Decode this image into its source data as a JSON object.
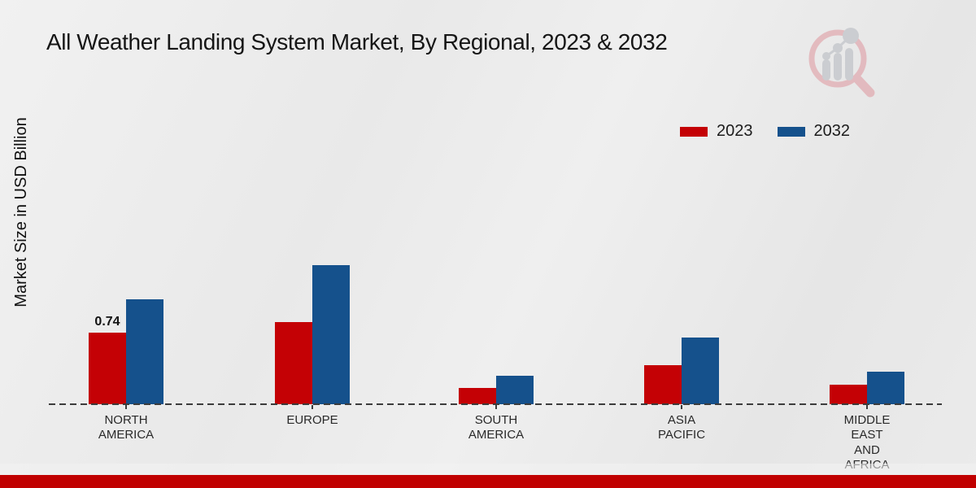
{
  "chart_data": {
    "type": "bar",
    "title": "All Weather Landing System Market, By Regional, 2023 & 2032",
    "ylabel": "Market Size in USD Billion",
    "xlabel": "",
    "categories": [
      "NORTH AMERICA",
      "EUROPE",
      "SOUTH AMERICA",
      "ASIA PACIFIC",
      "MIDDLE EAST AND AFRICA"
    ],
    "series": [
      {
        "name": "2023",
        "color": "#c40105",
        "values": [
          0.74,
          0.85,
          0.17,
          0.4,
          0.2
        ]
      },
      {
        "name": "2032",
        "color": "#15518c",
        "values": [
          1.08,
          1.44,
          0.29,
          0.69,
          0.34
        ]
      }
    ],
    "value_labels": [
      {
        "series": "2023",
        "category": "NORTH AMERICA",
        "text": "0.74"
      }
    ],
    "ylim": [
      0,
      1.6
    ],
    "grid": false,
    "legend_position": "top-right",
    "baseline_style": "dashed"
  },
  "branding": {
    "logo_name": "magnifier-bar-chart-logo",
    "footer_bar_color": "#c00000",
    "logo_ring_color": "#e2b3b8",
    "logo_glyph_color": "#c6c9cd"
  }
}
